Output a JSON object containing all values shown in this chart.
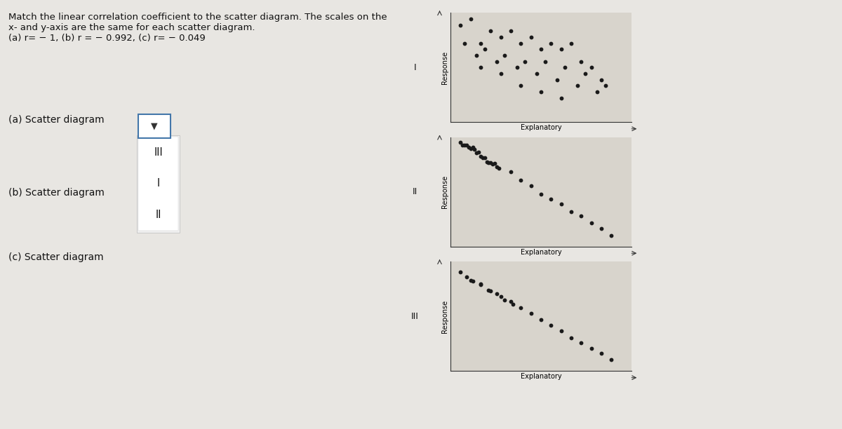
{
  "title_text": "Match the linear correlation coefficient to the scatter diagram. The scales on the\nx- and y-axis are the same for each scatter diagram.\n(a) r= − 1, (b) r = − 0.992, (c) r= − 0.049",
  "left_labels": [
    "(a) Scatter diagram",
    "(b) Scatter diagram",
    "(c) Scatter diagram"
  ],
  "dropdown_options": [
    "III",
    "I",
    "II"
  ],
  "diagram_labels": [
    "I",
    "II",
    "III"
  ],
  "xlabel": "Explanatory",
  "ylabel": "Response",
  "page_bg": "#e8e6e2",
  "plot_bg": "#d8d4cc",
  "text_color": "#111111",
  "dot_color": "#1a1a1a",
  "dropdown_bg": "#ffffff",
  "dropdown_border": "#4477aa",
  "label_fontsize": 10,
  "title_fontsize": 9.5,
  "axis_label_fontsize": 7,
  "diagram_label_fontsize": 9
}
